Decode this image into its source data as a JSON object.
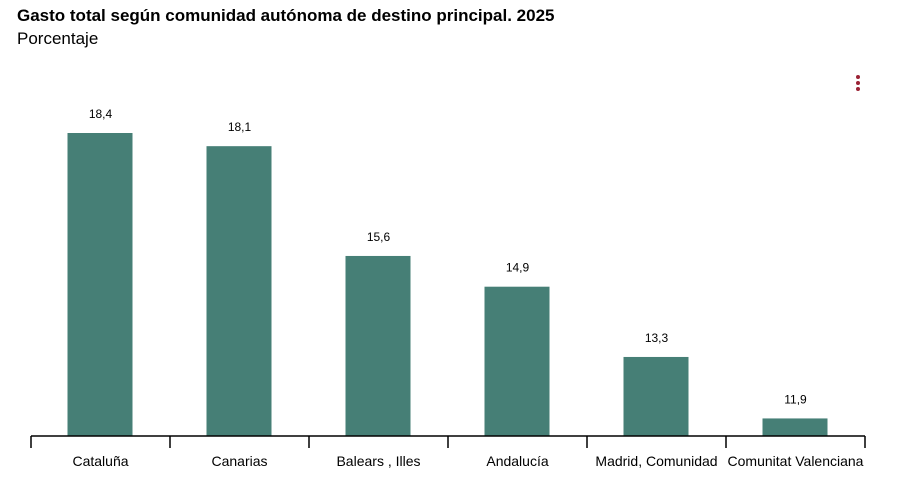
{
  "colors": {
    "bar": "#467f76",
    "menu": "#9b2335",
    "axis": "#000000"
  },
  "menu_icon": "vertical-ellipsis-icon",
  "chart_data": {
    "type": "bar",
    "title": "Gasto total según comunidad autónoma de destino principal. 2025",
    "subtitle": "Porcentaje",
    "categories": [
      "Cataluña",
      "Canarias",
      "Balears , Illes",
      "Andalucía",
      "Madrid, Comunidad",
      "Comunitat Valenciana"
    ],
    "values": [
      18.4,
      18.1,
      15.6,
      14.9,
      13.3,
      11.9
    ],
    "data_labels": [
      "18,4",
      "18,1",
      "15,6",
      "14,9",
      "13,3",
      "11,9"
    ],
    "xlabel": "",
    "ylabel": "",
    "grid": false,
    "ylim": [
      11.5,
      18.4
    ]
  }
}
